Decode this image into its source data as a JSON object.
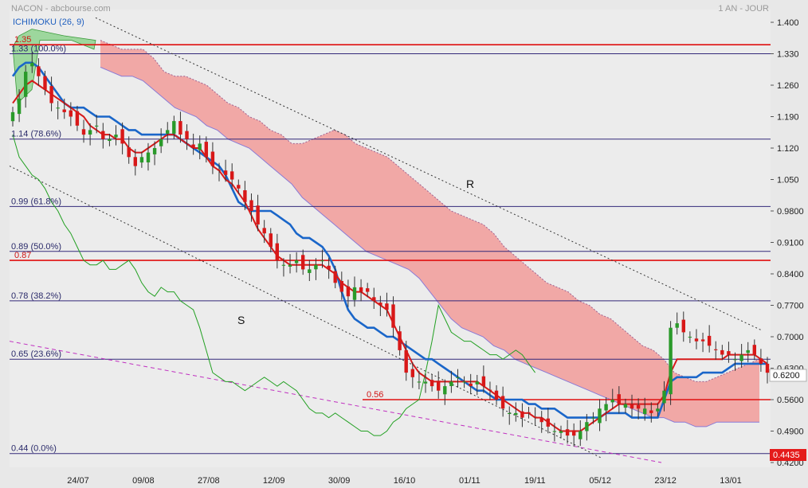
{
  "header": {
    "left": "NACON - abcbourse.com",
    "right": "1 AN - JOUR",
    "indicator": "ICHIMOKU (26, 9)"
  },
  "chart_data": {
    "type": "candlestick",
    "title": "NACON - abcbourse.com",
    "period": "1 AN - JOUR",
    "indicator": "ICHIMOKU (26, 9)",
    "ylim": [
      0.42,
      1.4
    ],
    "y_ticks": [
      1.4,
      1.33,
      1.26,
      1.19,
      1.12,
      1.05,
      0.98,
      0.91,
      0.84,
      0.77,
      0.7,
      0.63,
      0.56,
      0.49,
      0.42
    ],
    "y_tick_labels": [
      "1.400",
      "1.330",
      "1.260",
      "1.190",
      "1.120",
      "1.050",
      "0.9800",
      "0.9100",
      "0.8400",
      "0.7700",
      "0.7000",
      "0.6300",
      "0.5600",
      "0.4900",
      "0.4200"
    ],
    "x_ticks": [
      "24/07",
      "09/08",
      "27/08",
      "12/09",
      "30/09",
      "16/10",
      "01/11",
      "19/11",
      "05/12",
      "23/12",
      "13/01"
    ],
    "fibonacci": [
      {
        "label": "1.33  (100.0%)",
        "value": 1.33
      },
      {
        "label": "1.14  (78.6%)",
        "value": 1.14
      },
      {
        "label": "0.99  (61.8%)",
        "value": 0.99
      },
      {
        "label": "0.89  (50.0%)",
        "value": 0.89
      },
      {
        "label": "0.78  (38.2%)",
        "value": 0.78
      },
      {
        "label": "0.65  (23.6%)",
        "value": 0.65
      },
      {
        "label": "0.44  (0.0%)",
        "value": 0.44
      }
    ],
    "horizontal_levels": [
      {
        "label": "1.35",
        "value": 1.35
      },
      {
        "label": "0.87",
        "value": 0.87
      },
      {
        "label": "0.56",
        "value": 0.56
      }
    ],
    "annotations": [
      "R",
      "S"
    ],
    "last_price": "0.6200",
    "fib_low_price": "0.4435",
    "series": {
      "close": [
        1.2,
        1.23,
        1.29,
        1.31,
        1.28,
        1.25,
        1.22,
        1.21,
        1.2,
        1.19,
        1.17,
        1.15,
        1.16,
        1.17,
        1.14,
        1.14,
        1.15,
        1.13,
        1.1,
        1.08,
        1.1,
        1.11,
        1.12,
        1.14,
        1.16,
        1.18,
        1.15,
        1.14,
        1.12,
        1.13,
        1.1,
        1.08,
        1.07,
        1.06,
        1.05,
        1.03,
        1.0,
        0.98,
        0.95,
        0.93,
        0.9,
        0.87,
        0.86,
        0.86,
        0.87,
        0.85,
        0.85,
        0.86,
        0.87,
        0.85,
        0.82,
        0.8,
        0.79,
        0.81,
        0.8,
        0.8,
        0.78,
        0.77,
        0.76,
        0.72,
        0.67,
        0.62,
        0.61,
        0.6,
        0.6,
        0.59,
        0.58,
        0.59,
        0.6,
        0.61,
        0.6,
        0.59,
        0.6,
        0.59,
        0.58,
        0.56,
        0.54,
        0.53,
        0.53,
        0.52,
        0.53,
        0.52,
        0.51,
        0.5,
        0.49,
        0.49,
        0.48,
        0.48,
        0.49,
        0.51,
        0.52,
        0.54,
        0.55,
        0.56,
        0.55,
        0.55,
        0.54,
        0.54,
        0.54,
        0.53,
        0.54,
        0.58,
        0.72,
        0.73,
        0.71,
        0.7,
        0.69,
        0.69,
        0.68,
        0.67,
        0.66,
        0.66,
        0.65,
        0.66,
        0.67,
        0.66,
        0.64,
        0.62
      ],
      "tenkan": [
        1.22,
        1.24,
        1.26,
        1.27,
        1.26,
        1.25,
        1.24,
        1.23,
        1.22,
        1.21,
        1.2,
        1.19,
        1.17,
        1.16,
        1.15,
        1.15,
        1.14,
        1.14,
        1.12,
        1.11,
        1.11,
        1.12,
        1.13,
        1.14,
        1.15,
        1.15,
        1.14,
        1.13,
        1.12,
        1.12,
        1.1,
        1.08,
        1.07,
        1.05,
        1.04,
        1.02,
        1.0,
        0.97,
        0.94,
        0.92,
        0.9,
        0.88,
        0.87,
        0.86,
        0.86,
        0.86,
        0.86,
        0.86,
        0.86,
        0.85,
        0.84,
        0.82,
        0.81,
        0.8,
        0.8,
        0.79,
        0.78,
        0.77,
        0.76,
        0.73,
        0.7,
        0.67,
        0.64,
        0.62,
        0.61,
        0.6,
        0.6,
        0.6,
        0.6,
        0.6,
        0.6,
        0.6,
        0.6,
        0.59,
        0.58,
        0.57,
        0.56,
        0.55,
        0.54,
        0.53,
        0.53,
        0.52,
        0.52,
        0.51,
        0.5,
        0.49,
        0.49,
        0.49,
        0.49,
        0.5,
        0.51,
        0.52,
        0.53,
        0.54,
        0.55,
        0.55,
        0.55,
        0.55,
        0.55,
        0.55,
        0.55,
        0.57,
        0.62,
        0.65,
        0.65,
        0.65,
        0.65,
        0.65,
        0.65,
        0.65,
        0.65,
        0.66,
        0.66,
        0.66,
        0.66,
        0.66,
        0.65,
        0.64
      ],
      "kijun": [
        1.28,
        1.3,
        1.31,
        1.31,
        1.3,
        1.28,
        1.26,
        1.24,
        1.22,
        1.21,
        1.21,
        1.21,
        1.2,
        1.19,
        1.19,
        1.19,
        1.18,
        1.17,
        1.16,
        1.16,
        1.15,
        1.15,
        1.15,
        1.15,
        1.15,
        1.15,
        1.14,
        1.13,
        1.12,
        1.11,
        1.1,
        1.09,
        1.08,
        1.06,
        1.03,
        1.0,
        0.99,
        0.98,
        0.98,
        0.98,
        0.98,
        0.97,
        0.96,
        0.95,
        0.93,
        0.92,
        0.92,
        0.91,
        0.9,
        0.88,
        0.85,
        0.8,
        0.76,
        0.74,
        0.73,
        0.72,
        0.72,
        0.71,
        0.7,
        0.7,
        0.69,
        0.68,
        0.67,
        0.66,
        0.65,
        0.65,
        0.64,
        0.63,
        0.62,
        0.61,
        0.6,
        0.59,
        0.58,
        0.58,
        0.57,
        0.56,
        0.56,
        0.56,
        0.56,
        0.56,
        0.55,
        0.55,
        0.54,
        0.54,
        0.54,
        0.53,
        0.52,
        0.52,
        0.52,
        0.52,
        0.52,
        0.52,
        0.53,
        0.53,
        0.53,
        0.53,
        0.52,
        0.52,
        0.52,
        0.52,
        0.52,
        0.56,
        0.6,
        0.61,
        0.61,
        0.61,
        0.61,
        0.62,
        0.62,
        0.62,
        0.62,
        0.63,
        0.64,
        0.64,
        0.64,
        0.64,
        0.64,
        0.64
      ],
      "chikou": [
        1.15,
        1.1,
        1.08,
        1.06,
        1.05,
        1.03,
        1.0,
        0.98,
        0.95,
        0.93,
        0.9,
        0.87,
        0.86,
        0.86,
        0.87,
        0.85,
        0.85,
        0.86,
        0.87,
        0.85,
        0.82,
        0.8,
        0.79,
        0.81,
        0.8,
        0.8,
        0.78,
        0.77,
        0.76,
        0.72,
        0.67,
        0.62,
        0.61,
        0.6,
        0.6,
        0.59,
        0.58,
        0.59,
        0.6,
        0.61,
        0.6,
        0.59,
        0.6,
        0.59,
        0.58,
        0.56,
        0.54,
        0.53,
        0.53,
        0.52,
        0.53,
        0.52,
        0.51,
        0.5,
        0.49,
        0.49,
        0.48,
        0.48,
        0.49,
        0.51,
        0.52,
        0.54,
        0.55,
        0.56,
        0.62,
        0.69,
        0.77,
        0.74,
        0.71,
        0.7,
        0.69,
        0.69,
        0.68,
        0.67,
        0.66,
        0.66,
        0.65,
        0.66,
        0.67,
        0.66,
        0.64,
        0.62
      ]
    },
    "cloud": {
      "span_a": [
        1.36,
        1.35,
        1.34,
        1.34,
        1.34,
        1.32,
        1.29,
        1.28,
        1.28,
        1.27,
        1.26,
        1.24,
        1.22,
        1.21,
        1.19,
        1.18,
        1.16,
        1.15,
        1.13,
        1.13,
        1.14,
        1.15,
        1.16,
        1.15,
        1.13,
        1.12,
        1.11,
        1.1,
        1.08,
        1.06,
        1.04,
        1.02,
        1.0,
        0.98,
        0.97,
        0.96,
        0.95,
        0.93,
        0.9,
        0.88,
        0.86,
        0.84,
        0.82,
        0.81,
        0.8,
        0.78,
        0.77,
        0.75,
        0.74,
        0.72,
        0.7,
        0.68,
        0.67,
        0.65,
        0.62,
        0.61,
        0.6,
        0.6,
        0.61,
        0.62,
        0.63,
        0.64,
        0.65
      ],
      "span_b": [
        1.3,
        1.29,
        1.28,
        1.28,
        1.27,
        1.25,
        1.23,
        1.21,
        1.2,
        1.19,
        1.17,
        1.16,
        1.14,
        1.13,
        1.12,
        1.1,
        1.08,
        1.06,
        1.04,
        1.01,
        0.99,
        0.97,
        0.95,
        0.93,
        0.91,
        0.89,
        0.88,
        0.87,
        0.86,
        0.85,
        0.83,
        0.8,
        0.77,
        0.74,
        0.72,
        0.71,
        0.7,
        0.68,
        0.67,
        0.65,
        0.64,
        0.63,
        0.62,
        0.61,
        0.6,
        0.59,
        0.58,
        0.57,
        0.56,
        0.55,
        0.54,
        0.53,
        0.52,
        0.52,
        0.51,
        0.51,
        0.5,
        0.5,
        0.51,
        0.51,
        0.51,
        0.51,
        0.51
      ]
    }
  }
}
